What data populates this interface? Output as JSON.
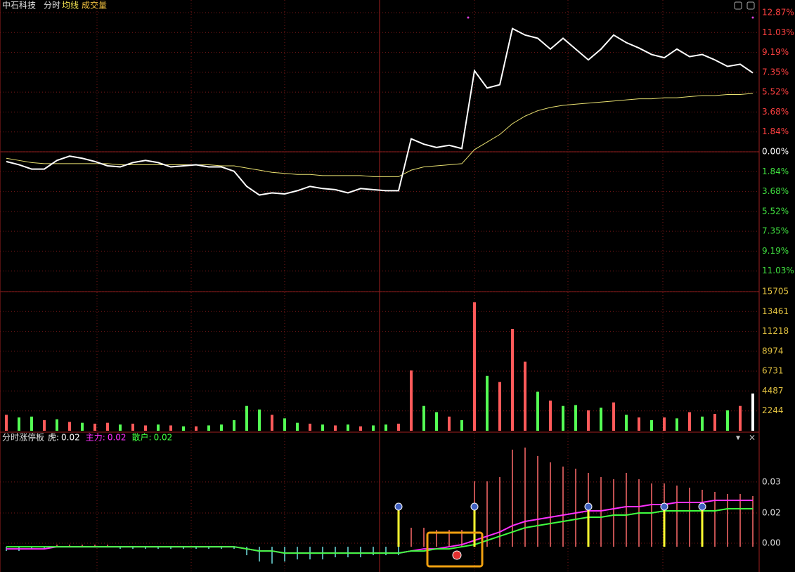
{
  "header": {
    "stock": "中石科技",
    "mode": "分时",
    "avg_label": "均线",
    "vol_label": "成交量"
  },
  "chart_data": [
    {
      "type": "line",
      "ylim": [
        -12.87,
        12.87
      ],
      "yticks": [
        {
          "value": 12.87,
          "label": "12.87%"
        },
        {
          "value": 11.03,
          "label": "11.03%"
        },
        {
          "value": 9.19,
          "label": "9.19%"
        },
        {
          "value": 7.35,
          "label": "7.35%"
        },
        {
          "value": 5.52,
          "label": "5.52%"
        },
        {
          "value": 3.68,
          "label": "3.68%"
        },
        {
          "value": 1.84,
          "label": "1.84%"
        },
        {
          "value": 0,
          "label": "0.00%"
        },
        {
          "value": -1.84,
          "label": "1.84%"
        },
        {
          "value": -3.68,
          "label": "3.68%"
        },
        {
          "value": -5.52,
          "label": "5.52%"
        },
        {
          "value": -7.35,
          "label": "7.35%"
        },
        {
          "value": -9.19,
          "label": "9.19%"
        },
        {
          "value": -11.03,
          "label": "11.03%"
        }
      ],
      "up_color": "#ff4040",
      "flat_color": "#ffffff",
      "down_color": "#40e040",
      "grid": true,
      "series": [
        {
          "color": "#ffffff",
          "values": [
            -0.9,
            -1.2,
            -1.6,
            -1.6,
            -0.8,
            -0.4,
            -0.6,
            -0.9,
            -1.3,
            -1.4,
            -1.0,
            -0.8,
            -1.0,
            -1.4,
            -1.3,
            -1.2,
            -1.4,
            -1.4,
            -1.8,
            -3.2,
            -4.0,
            -3.8,
            -3.9,
            -3.6,
            -3.2,
            -3.4,
            -3.5,
            -3.8,
            -3.4,
            -3.5,
            -3.6,
            -3.6,
            1.2,
            0.7,
            0.4,
            0.6,
            0.3,
            7.5,
            5.9,
            6.2,
            11.4,
            10.8,
            10.5,
            9.5,
            10.5,
            9.5,
            8.5,
            9.5,
            10.8,
            10.1,
            9.6,
            9.0,
            8.7,
            9.5,
            8.8,
            9.0,
            8.5,
            7.9,
            8.1,
            7.3
          ]
        },
        {
          "color": "#e8e070",
          "values": [
            -0.6,
            -0.8,
            -1.0,
            -1.1,
            -1.1,
            -1.1,
            -1.1,
            -1.1,
            -1.1,
            -1.2,
            -1.2,
            -1.2,
            -1.2,
            -1.2,
            -1.2,
            -1.2,
            -1.2,
            -1.3,
            -1.3,
            -1.5,
            -1.7,
            -1.9,
            -2.0,
            -2.1,
            -2.1,
            -2.2,
            -2.2,
            -2.2,
            -2.2,
            -2.3,
            -2.3,
            -2.3,
            -1.7,
            -1.4,
            -1.3,
            -1.2,
            -1.1,
            0.2,
            0.9,
            1.6,
            2.6,
            3.3,
            3.8,
            4.1,
            4.3,
            4.4,
            4.5,
            4.6,
            4.7,
            4.8,
            4.9,
            4.9,
            5.0,
            5.0,
            5.1,
            5.2,
            5.2,
            5.3,
            5.3,
            5.4
          ]
        }
      ]
    },
    {
      "type": "bar",
      "ylim": [
        0,
        15705
      ],
      "yticks": [
        15705,
        13461,
        11218,
        8974,
        6731,
        4487,
        2244
      ],
      "tick_color": "#e0c040",
      "values": [
        1800,
        1500,
        1600,
        1200,
        1300,
        1000,
        900,
        800,
        900,
        700,
        800,
        600,
        700,
        600,
        500,
        500,
        600,
        700,
        1200,
        2800,
        2400,
        1800,
        1400,
        900,
        800,
        700,
        600,
        700,
        500,
        600,
        700,
        800,
        6800,
        2800,
        2100,
        1600,
        1200,
        14500,
        6200,
        5500,
        11500,
        7800,
        4400,
        3400,
        2800,
        2900,
        2300,
        2600,
        3200,
        1800,
        1500,
        1200,
        1500,
        1400,
        2100,
        1600,
        1900,
        2300,
        2800,
        4200
      ],
      "colors": [
        "#ff5a5a",
        "#54ff54",
        "#54ff54",
        "#ff5a5a",
        "#54ff54",
        "#ff5a5a",
        "#54ff54",
        "#ff5a5a",
        "#ff5a5a",
        "#54ff54",
        "#ff5a5a",
        "#ff5a5a",
        "#54ff54",
        "#ff5a5a",
        "#54ff54",
        "#ff5a5a",
        "#54ff54",
        "#54ff54",
        "#54ff54",
        "#54ff54",
        "#54ff54",
        "#ff5a5a",
        "#54ff54",
        "#54ff54",
        "#ff5a5a",
        "#54ff54",
        "#ff5a5a",
        "#54ff54",
        "#ff5a5a",
        "#54ff54",
        "#54ff54",
        "#ff5a5a",
        "#ff5a5a",
        "#54ff54",
        "#54ff54",
        "#ff5a5a",
        "#54ff54",
        "#ff5a5a",
        "#54ff54",
        "#ff5a5a",
        "#ff5a5a",
        "#ff5a5a",
        "#54ff54",
        "#ff5a5a",
        "#54ff54",
        "#54ff54",
        "#ff5a5a",
        "#54ff54",
        "#ff5a5a",
        "#54ff54",
        "#ff5a5a",
        "#54ff54",
        "#ff5a5a",
        "#54ff54",
        "#ff5a5a",
        "#54ff54",
        "#ff5a5a",
        "#54ff54",
        "#ff5a5a",
        "#ffffff"
      ]
    },
    {
      "type": "indicator",
      "title": "分时涨停板",
      "ylim": [
        -0.0113,
        0.0493
      ],
      "yticks": [
        {
          "value": 0.0307,
          "label": "0.03"
        },
        {
          "value": 0.016,
          "label": "0.02"
        },
        {
          "value": 0.0017,
          "label": "0.00"
        }
      ],
      "legend": [
        {
          "label": "虎:",
          "value": 0.02,
          "color": "#ffffff"
        },
        {
          "label": "主力:",
          "value": 0.02,
          "color": "#ff30ff"
        },
        {
          "label": "散户:",
          "value": 0.02,
          "color": "#40ff40"
        }
      ],
      "pos_color": "#ff6a6a",
      "neg_color": "#70e0e0",
      "signal_color": "#ffff30",
      "bars": [
        -0.002,
        -0.002,
        -0.001,
        -0.001,
        0.001,
        0.001,
        0.001,
        0.001,
        0.001,
        -0.001,
        -0.001,
        -0.001,
        -0.001,
        -0.001,
        -0.001,
        -0.001,
        -0.001,
        -0.001,
        -0.001,
        -0.004,
        -0.007,
        -0.008,
        -0.007,
        -0.006,
        -0.006,
        -0.006,
        -0.005,
        -0.005,
        -0.005,
        -0.004,
        -0.004,
        -0.004,
        0.009,
        0.009,
        0.008,
        0.008,
        0.008,
        0.031,
        0.031,
        0.033,
        0.046,
        0.047,
        0.043,
        0.04,
        0.038,
        0.037,
        0.035,
        0.033,
        0.032,
        0.035,
        0.032,
        0.03,
        0.03,
        0.029,
        0.028,
        0.027,
        0.026,
        0.025,
        0.025,
        0.024
      ],
      "signals": [
        null,
        null,
        null,
        null,
        null,
        null,
        null,
        null,
        null,
        null,
        null,
        null,
        null,
        null,
        null,
        null,
        null,
        null,
        null,
        null,
        null,
        null,
        null,
        null,
        null,
        null,
        null,
        null,
        null,
        null,
        null,
        0.019,
        null,
        null,
        null,
        null,
        null,
        0.019,
        null,
        null,
        null,
        null,
        null,
        null,
        null,
        null,
        0.019,
        null,
        null,
        null,
        null,
        null,
        0.019,
        null,
        null,
        0.019,
        null,
        null,
        null,
        null
      ],
      "series": [
        {
          "color": "#ff30ff",
          "values": [
            -0.001,
            -0.001,
            -0.001,
            -0.001,
            0,
            0,
            0,
            0,
            0,
            0,
            0,
            0,
            0,
            0,
            0,
            0,
            0,
            0,
            0,
            -0.001,
            -0.002,
            -0.002,
            -0.003,
            -0.003,
            -0.003,
            -0.003,
            -0.003,
            -0.003,
            -0.003,
            -0.003,
            -0.003,
            -0.003,
            -0.002,
            -0.001,
            -0.001,
            0,
            0.001,
            0.003,
            0.005,
            0.007,
            0.01,
            0.012,
            0.013,
            0.014,
            0.015,
            0.016,
            0.017,
            0.017,
            0.018,
            0.019,
            0.019,
            0.02,
            0.02,
            0.021,
            0.021,
            0.021,
            0.022,
            0.022,
            0.022,
            0.022
          ]
        },
        {
          "color": "#40ff40",
          "values": [
            0,
            0,
            0,
            0,
            0,
            0,
            0,
            0,
            0,
            0,
            0,
            0,
            0,
            0,
            0,
            0,
            0,
            0,
            0,
            -0.001,
            -0.002,
            -0.002,
            -0.003,
            -0.003,
            -0.003,
            -0.003,
            -0.003,
            -0.003,
            -0.003,
            -0.003,
            -0.003,
            -0.003,
            -0.002,
            -0.002,
            -0.001,
            -0.001,
            0,
            0.001,
            0.003,
            0.005,
            0.007,
            0.009,
            0.01,
            0.011,
            0.012,
            0.013,
            0.014,
            0.014,
            0.015,
            0.015,
            0.016,
            0.016,
            0.017,
            0.017,
            0.017,
            0.017,
            0.017,
            0.018,
            0.018,
            0.018
          ]
        }
      ]
    }
  ]
}
